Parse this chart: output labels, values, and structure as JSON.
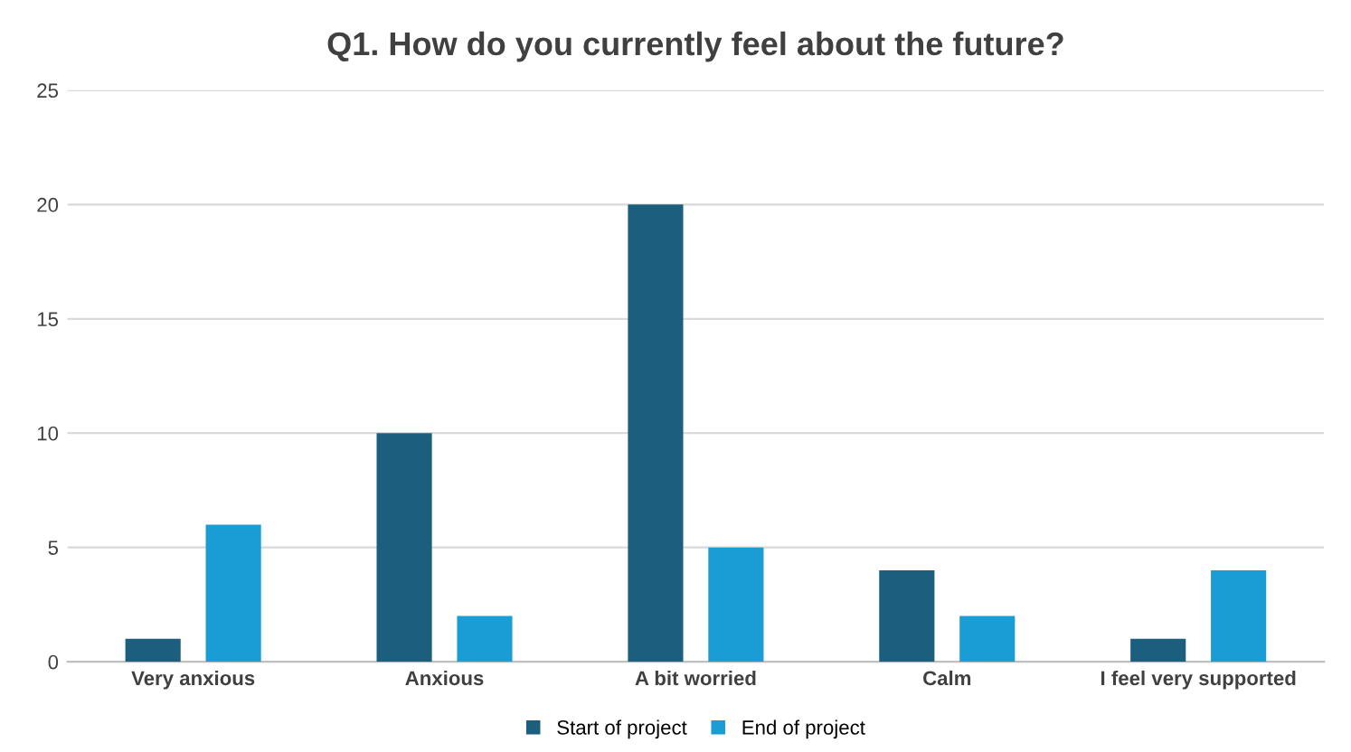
{
  "chart_data": {
    "type": "bar",
    "title": "Q1. How do you currently feel about the future?",
    "categories": [
      "Very anxious",
      "Anxious",
      "A bit worried",
      "Calm",
      "I feel very supported"
    ],
    "series": [
      {
        "name": "Start of project",
        "color": "#1b5e7e",
        "values": [
          1,
          10,
          20,
          4,
          1
        ]
      },
      {
        "name": "End of project",
        "color": "#1a9dd4",
        "values": [
          6,
          2,
          5,
          2,
          4
        ]
      }
    ],
    "ylim": [
      0,
      25
    ],
    "yticks": [
      0,
      5,
      10,
      15,
      20,
      25
    ],
    "grid": "y",
    "legend": "bottom"
  }
}
